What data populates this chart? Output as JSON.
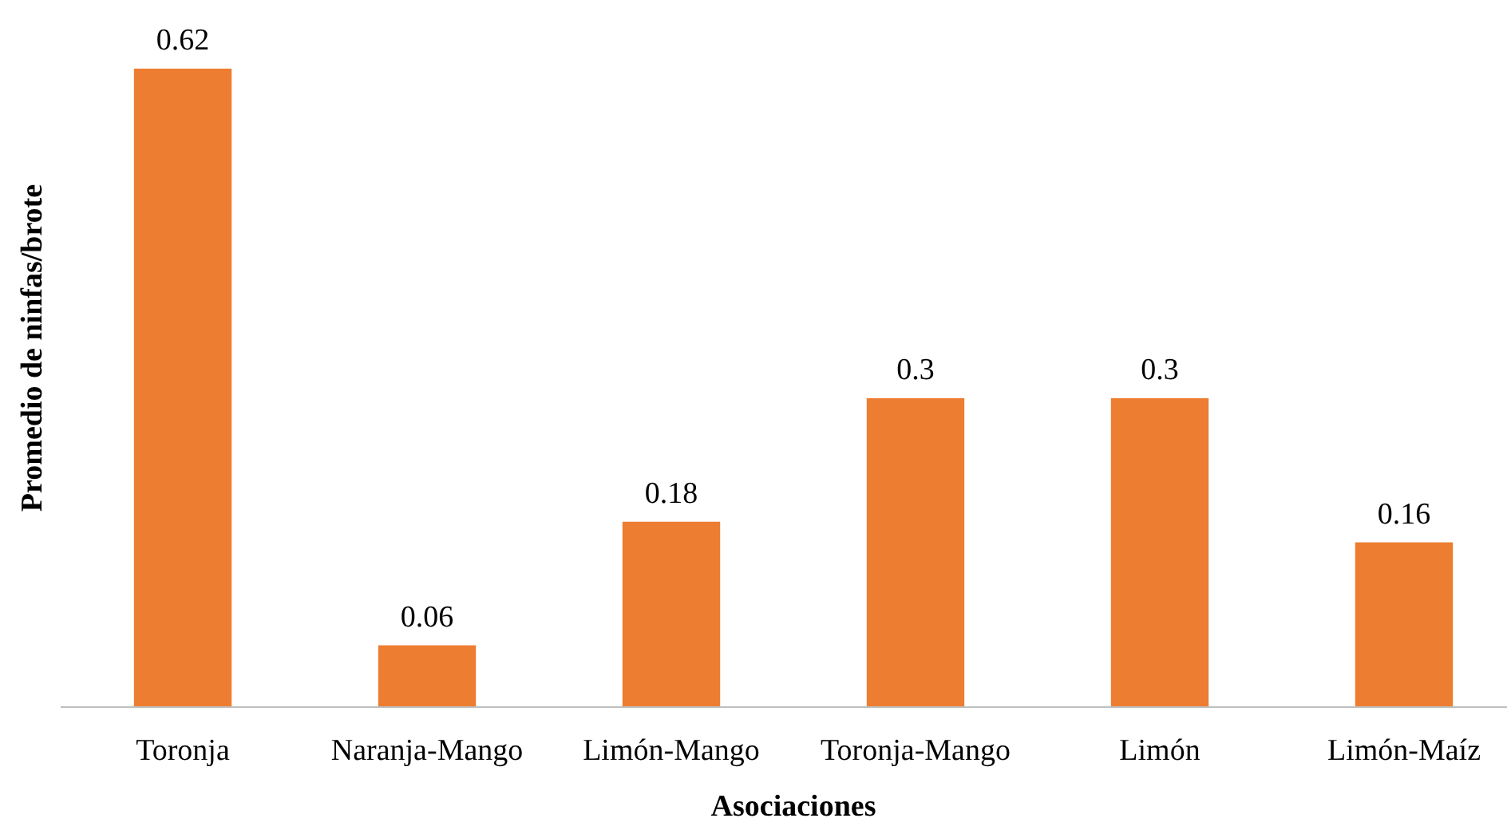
{
  "chart_data": {
    "type": "bar",
    "xlabel": "Asociaciones",
    "ylabel": "Promedio de ninfas/brote",
    "categories": [
      "Toronja",
      "Naranja-Mango",
      "Limón-Mango",
      "Toronja-Mango",
      "Limón",
      "Limón-Maíz"
    ],
    "values": [
      0.62,
      0.06,
      0.18,
      0.3,
      0.3,
      0.16
    ],
    "color": "#ed7d31",
    "data_labels": true
  }
}
